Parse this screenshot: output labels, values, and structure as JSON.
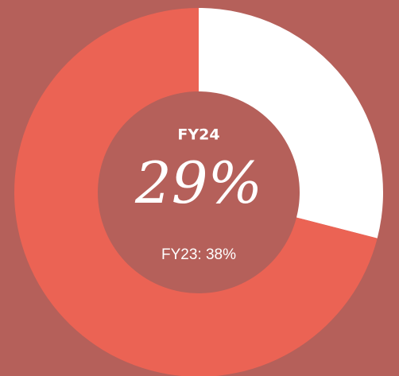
{
  "chart_data": {
    "type": "donut",
    "title": "FY24",
    "values": [
      29,
      71
    ],
    "value_labels": [
      "29%",
      null
    ],
    "colors": [
      "#ffffff",
      "#eb6354"
    ],
    "annotation": "FY23: 38%"
  }
}
